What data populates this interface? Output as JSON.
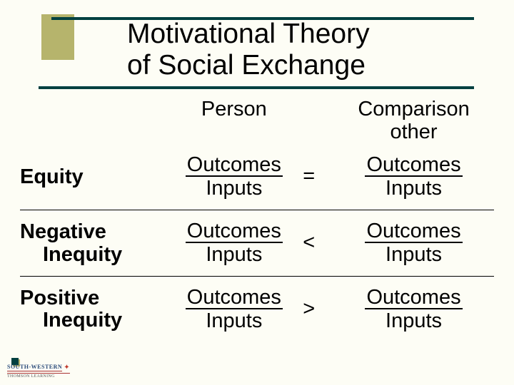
{
  "colors": {
    "background": "#fdfdf5",
    "teal": "#004040",
    "olive": "#b6b46c",
    "text": "#000000"
  },
  "title": {
    "line1": "Motivational Theory",
    "line2": "of Social Exchange",
    "fontsize": 39
  },
  "table": {
    "headers": {
      "person": "Person",
      "other_l1": "Comparison",
      "other_l2": "other"
    },
    "ratio": {
      "numerator": "Outcomes",
      "denominator": "Inputs"
    },
    "rows": [
      {
        "label_l1": "Equity",
        "label_l2": "",
        "op": "="
      },
      {
        "label_l1": "Negative",
        "label_l2": "Inequity",
        "op": "<"
      },
      {
        "label_l1": "Positive",
        "label_l2": "Inequity",
        "op": ">"
      }
    ],
    "fontsize": 29,
    "rule_color": "#000000"
  },
  "footer": {
    "brand": "SOUTH-WESTERN",
    "sub": "THOMSON LEARNING"
  }
}
